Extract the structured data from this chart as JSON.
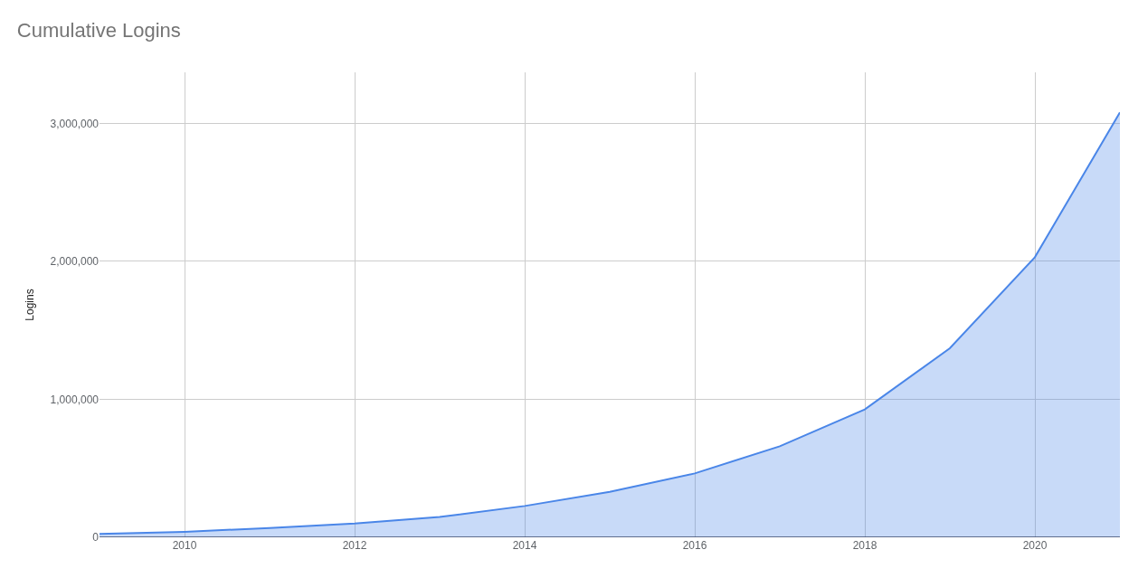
{
  "chart_data": {
    "type": "area",
    "title": "Cumulative Logins",
    "ylabel": "Logins",
    "x": [
      2009,
      2010,
      2011,
      2012,
      2013,
      2014,
      2015,
      2016,
      2017,
      2018,
      2019,
      2020,
      2021
    ],
    "series": [
      {
        "color": "#4a86e8",
        "values": [
          25000,
          40000,
          67000,
          100000,
          147000,
          227000,
          330000,
          463000,
          660000,
          927000,
          1370000,
          2030000,
          3080000
        ]
      }
    ],
    "xlim": [
      2009,
      2021
    ],
    "xticks": [
      2010,
      2012,
      2014,
      2016,
      2018,
      2020
    ],
    "ylim": [
      0,
      3370000
    ],
    "yticks": [
      {
        "value": 0,
        "label": "0"
      },
      {
        "value": 1000000,
        "label": "1,000,000"
      },
      {
        "value": 2000000,
        "label": "2,000,000"
      },
      {
        "value": 3000000,
        "label": "3,000,000"
      }
    ],
    "grid": true
  }
}
